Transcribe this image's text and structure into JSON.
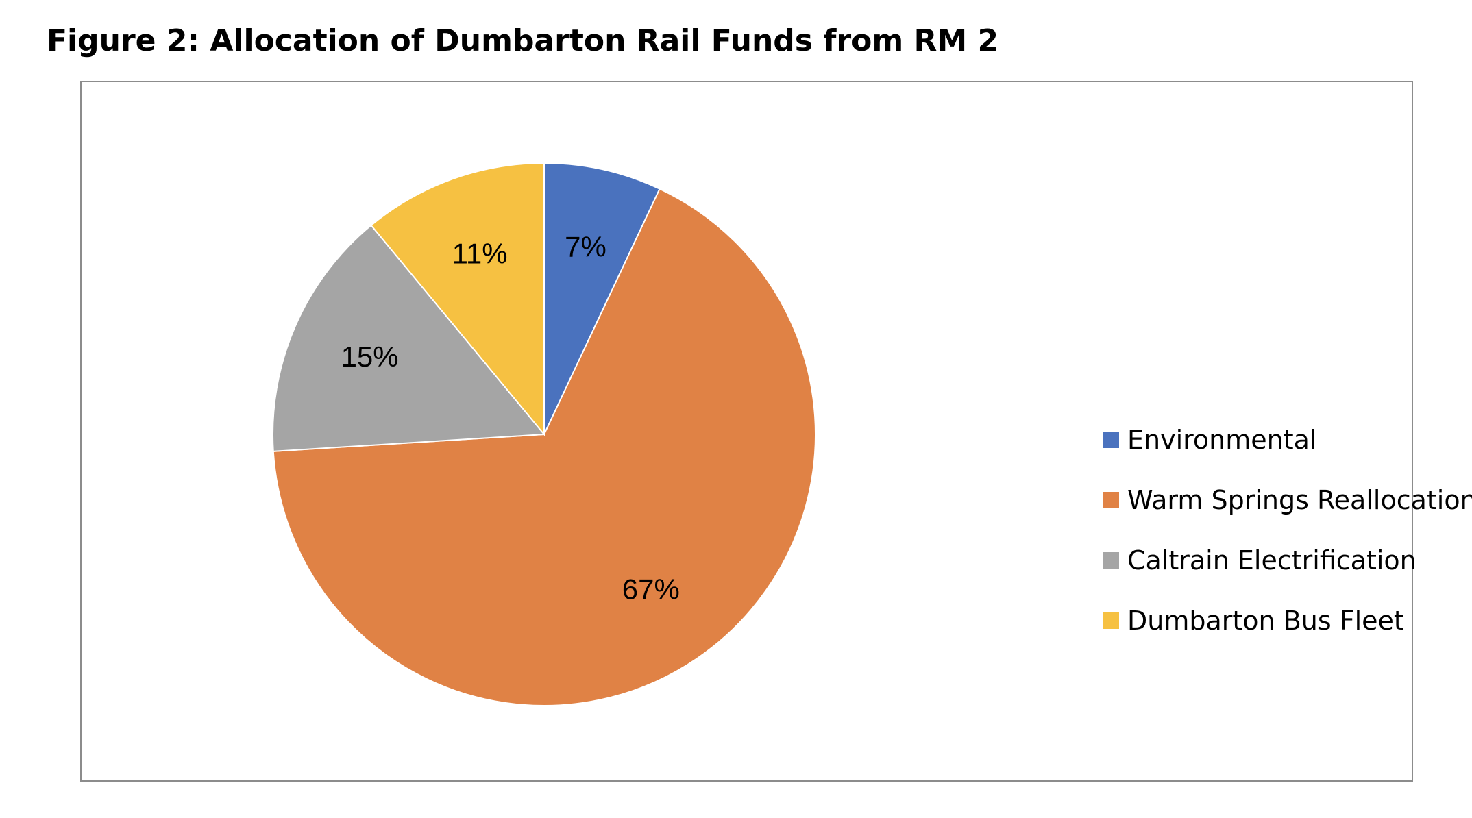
{
  "figure": {
    "title": "Figure 2: Allocation of Dumbarton Rail Funds from RM 2"
  },
  "chart_data": {
    "type": "pie",
    "title": "",
    "categories": [
      "Environmental",
      "Warm Springs Reallocation",
      "Caltrain Electrification",
      "Dumbarton Bus Fleet"
    ],
    "values": [
      7,
      67,
      15,
      11
    ],
    "labels": [
      "7%",
      "67%",
      "15%",
      "11%"
    ],
    "colors": [
      "#4a72be",
      "#e08245",
      "#a5a5a5",
      "#f6c142"
    ],
    "start_angle_deg": 0,
    "direction": "clockwise",
    "legend_position": "right"
  }
}
